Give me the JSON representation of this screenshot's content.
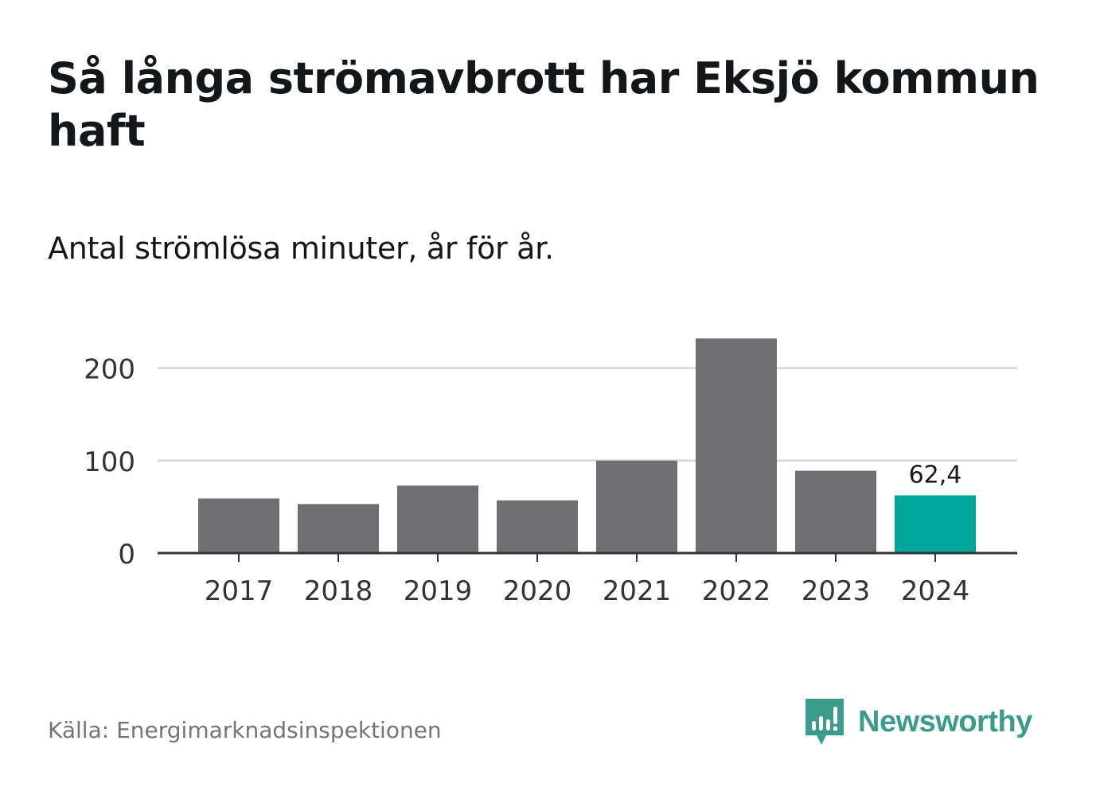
{
  "header": {
    "title": "Så långa strömavbrott har Eksjö kommun haft",
    "subtitle": "Antal strömlösa minuter, år för år."
  },
  "footer": {
    "source": "Källa: Energimarknadsinspektionen",
    "brand": "Newsworthy",
    "brand_icon": "newsworthy-logo-icon"
  },
  "colors": {
    "bar": "#6f6e73",
    "highlight": "#00a69a",
    "grid": "#dcdcdc",
    "axis": "#333333",
    "brand": "#3c9c8c"
  },
  "chart_data": {
    "type": "bar",
    "categories": [
      "2017",
      "2018",
      "2019",
      "2020",
      "2021",
      "2022",
      "2023",
      "2024"
    ],
    "values": [
      59,
      53,
      73,
      57,
      100,
      232,
      89,
      62.4
    ],
    "highlight_index": 7,
    "data_labels": [
      {
        "index": 7,
        "text": "62,4"
      }
    ],
    "yticks": [
      0,
      100,
      200
    ],
    "ytick_labels": [
      "0",
      "100",
      "200"
    ],
    "ylim": [
      0,
      240
    ],
    "xlabel": "",
    "ylabel": "",
    "grid": true
  }
}
